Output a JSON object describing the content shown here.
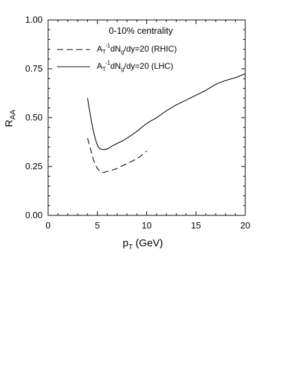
{
  "chart_data": {
    "type": "line",
    "title": "",
    "annotation": "0-10% centrality",
    "xlabel": "pT (GeV)",
    "xlabel_main": "p",
    "xlabel_sub": "T",
    "xlabel_rest": " (GeV)",
    "ylabel": "RAA",
    "ylabel_main": "R",
    "ylabel_sub": "AA",
    "xlim": [
      0,
      20
    ],
    "ylim": [
      0,
      1.0
    ],
    "x_ticks": [
      0,
      5,
      10,
      15,
      20
    ],
    "y_ticks": [
      0.0,
      0.25,
      0.5,
      0.75,
      1.0
    ],
    "x_tick_labels": [
      "0",
      "5",
      "10",
      "15",
      "20"
    ],
    "y_tick_labels": [
      "0.00",
      "0.25",
      "0.50",
      "0.75",
      "1.00"
    ],
    "grid": false,
    "legend_position": "top-left",
    "series": [
      {
        "name": "A_T^-1 dN_g/dy=20 (RHIC)",
        "label_A": "A",
        "label_sub1": "T",
        "label_sup": "-1",
        "label_mid": "dN",
        "label_sub2": "g",
        "label_end": "/dy=20 (RHIC)",
        "style": "dashed",
        "color": "#000000",
        "x": [
          4.0,
          4.3,
          4.6,
          5.0,
          5.3,
          5.6,
          6.0,
          6.5,
          7.0,
          7.5,
          8.0,
          8.5,
          9.0,
          9.5,
          10.0
        ],
        "y": [
          0.395,
          0.34,
          0.285,
          0.24,
          0.225,
          0.22,
          0.225,
          0.232,
          0.24,
          0.253,
          0.265,
          0.277,
          0.29,
          0.308,
          0.33
        ]
      },
      {
        "name": "A_T^-1 dN_g/dy=20 (LHC)",
        "label_A": "A",
        "label_sub1": "T",
        "label_sup": "-1",
        "label_mid": "dN",
        "label_sub2": "g",
        "label_end": "/dy=20 (LHC)",
        "style": "solid",
        "color": "#000000",
        "x": [
          4.0,
          4.3,
          4.6,
          5.0,
          5.3,
          5.6,
          6.0,
          6.5,
          7.0,
          7.5,
          8.0,
          9.0,
          10.0,
          11.0,
          12.0,
          13.0,
          14.0,
          15.0,
          16.0,
          17.0,
          18.0,
          19.0,
          20.0
        ],
        "y": [
          0.6,
          0.51,
          0.43,
          0.36,
          0.34,
          0.337,
          0.34,
          0.355,
          0.368,
          0.38,
          0.395,
          0.43,
          0.47,
          0.5,
          0.535,
          0.565,
          0.59,
          0.615,
          0.64,
          0.67,
          0.69,
          0.705,
          0.725
        ]
      }
    ]
  }
}
